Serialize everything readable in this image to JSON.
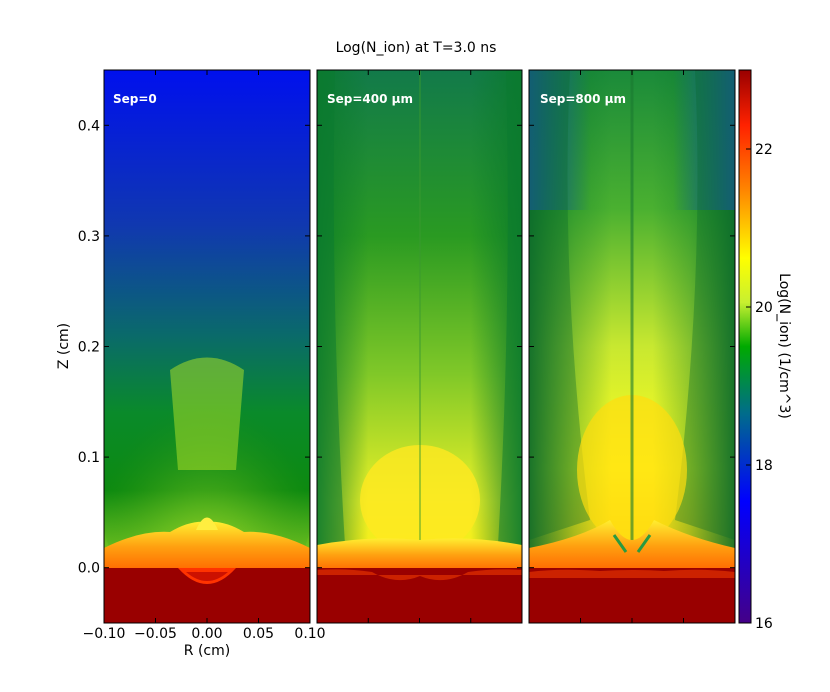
{
  "chart_data": {
    "type": "heatmap",
    "title": "Log(N_ion) at T=3.0 ns",
    "xlabel": "R (cm)",
    "ylabel": "Z (cm)",
    "xlim": [
      -0.1,
      0.1
    ],
    "ylim": [
      -0.05,
      0.45
    ],
    "x_ticks": [
      "−0.10",
      "−0.05",
      "0.00",
      "0.05",
      "0.10"
    ],
    "x_tick_values": [
      -0.1,
      -0.05,
      0.0,
      0.05,
      0.1
    ],
    "y_ticks": [
      "0.0",
      "0.1",
      "0.2",
      "0.3",
      "0.4"
    ],
    "y_tick_values": [
      0.0,
      0.1,
      0.2,
      0.3,
      0.4
    ],
    "panels": [
      {
        "label": "Sep=0",
        "separation_um": 0
      },
      {
        "label": "Sep=400 μm",
        "separation_um": 400
      },
      {
        "label": "Sep=800 μm",
        "separation_um": 800
      }
    ],
    "colorbar": {
      "label": "Log(N_ion) (1/cm^3)",
      "range": [
        16,
        23
      ],
      "ticks": [
        "16",
        "18",
        "20",
        "22"
      ],
      "tick_values": [
        16,
        18,
        20,
        22
      ],
      "colormap": [
        "#440088",
        "#0000ff",
        "#006d8a",
        "#00aa00",
        "#c8f030",
        "#ffff00",
        "#ff8800",
        "#ff2200",
        "#990000"
      ]
    },
    "grid": false
  }
}
